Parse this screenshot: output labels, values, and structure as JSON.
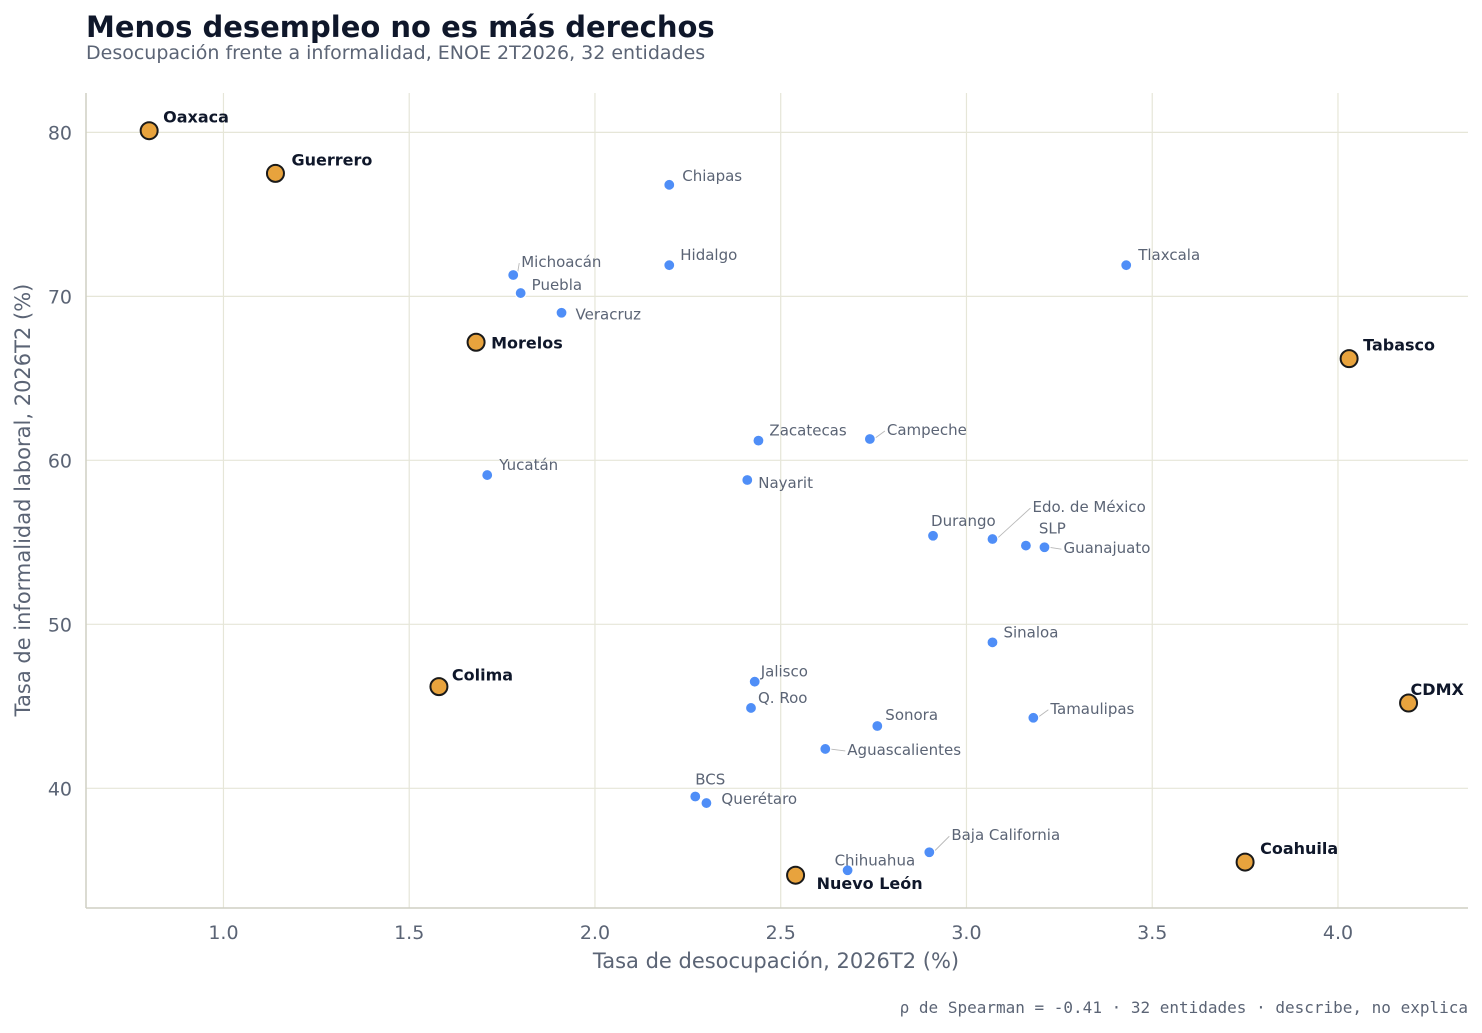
{
  "header": {
    "title": "Menos desempleo no es más derechos",
    "subtitle": "Desocupación frente a informalidad, ENOE 2T2026, 32 entidades"
  },
  "footnote": "ρ de Spearman = -0.41 · 32 entidades · describe, no explica",
  "colors": {
    "regular": "#4f8ef7",
    "highlight": "#e8a33d",
    "highlight_stroke": "#1a1a1a",
    "grid": "#e6e6d8",
    "axis": "#cfcfc4"
  },
  "chart_data": {
    "type": "scatter",
    "xlabel": "Tasa de desocupación, 2026T2 (%)",
    "ylabel": "Tasa de informalidad laboral, 2026T2 (%)",
    "xlim": [
      0.63,
      4.35
    ],
    "ylim": [
      32.7,
      82.4
    ],
    "xticks": [
      1.0,
      1.5,
      2.0,
      2.5,
      3.0,
      3.5,
      4.0
    ],
    "xtick_labels": [
      "1.0",
      "1.5",
      "2.0",
      "2.5",
      "3.0",
      "3.5",
      "4.0"
    ],
    "yticks": [
      40,
      50,
      60,
      70,
      80
    ],
    "ytick_labels": [
      "40",
      "50",
      "60",
      "70",
      "80"
    ],
    "grid": true,
    "points": [
      {
        "name": "Oaxaca",
        "x": 0.8,
        "y": 80.1,
        "highlight": true
      },
      {
        "name": "Guerrero",
        "x": 1.14,
        "y": 77.5,
        "highlight": true
      },
      {
        "name": "Chiapas",
        "x": 2.2,
        "y": 76.8,
        "highlight": false
      },
      {
        "name": "Hidalgo",
        "x": 2.2,
        "y": 71.9,
        "highlight": false
      },
      {
        "name": "Tlaxcala",
        "x": 3.43,
        "y": 71.9,
        "highlight": false
      },
      {
        "name": "Michoacán",
        "x": 1.78,
        "y": 71.3,
        "highlight": false
      },
      {
        "name": "Puebla",
        "x": 1.8,
        "y": 70.2,
        "highlight": false
      },
      {
        "name": "Veracruz",
        "x": 1.91,
        "y": 69.0,
        "highlight": false
      },
      {
        "name": "Morelos",
        "x": 1.68,
        "y": 67.2,
        "highlight": true
      },
      {
        "name": "Tabasco",
        "x": 4.03,
        "y": 66.2,
        "highlight": true
      },
      {
        "name": "Zacatecas",
        "x": 2.44,
        "y": 61.2,
        "highlight": false
      },
      {
        "name": "Campeche",
        "x": 2.74,
        "y": 61.3,
        "highlight": false
      },
      {
        "name": "Yucatán",
        "x": 1.71,
        "y": 59.1,
        "highlight": false
      },
      {
        "name": "Nayarit",
        "x": 2.41,
        "y": 58.8,
        "highlight": false
      },
      {
        "name": "Durango",
        "x": 2.91,
        "y": 55.4,
        "highlight": false
      },
      {
        "name": "Edo. de México",
        "x": 3.07,
        "y": 55.2,
        "highlight": false
      },
      {
        "name": "SLP",
        "x": 3.16,
        "y": 54.8,
        "highlight": false
      },
      {
        "name": "Guanajuato",
        "x": 3.21,
        "y": 54.7,
        "highlight": false
      },
      {
        "name": "Sinaloa",
        "x": 3.07,
        "y": 48.9,
        "highlight": false
      },
      {
        "name": "Colima",
        "x": 1.58,
        "y": 46.2,
        "highlight": true
      },
      {
        "name": "Jalisco",
        "x": 2.43,
        "y": 46.5,
        "highlight": false
      },
      {
        "name": "Q. Roo",
        "x": 2.42,
        "y": 44.9,
        "highlight": false
      },
      {
        "name": "CDMX",
        "x": 4.19,
        "y": 45.2,
        "highlight": true
      },
      {
        "name": "Sonora",
        "x": 2.76,
        "y": 43.8,
        "highlight": false
      },
      {
        "name": "Tamaulipas",
        "x": 3.18,
        "y": 44.3,
        "highlight": false
      },
      {
        "name": "Aguascalientes",
        "x": 2.62,
        "y": 42.4,
        "highlight": false
      },
      {
        "name": "BCS",
        "x": 2.27,
        "y": 39.5,
        "highlight": false
      },
      {
        "name": "Querétaro",
        "x": 2.3,
        "y": 39.1,
        "highlight": false
      },
      {
        "name": "Baja California",
        "x": 2.9,
        "y": 36.1,
        "highlight": false
      },
      {
        "name": "Chihuahua",
        "x": 2.68,
        "y": 35.0,
        "highlight": false
      },
      {
        "name": "Nuevo León",
        "x": 2.54,
        "y": 34.7,
        "highlight": true
      },
      {
        "name": "Coahuila",
        "x": 3.75,
        "y": 35.5,
        "highlight": true
      }
    ]
  }
}
